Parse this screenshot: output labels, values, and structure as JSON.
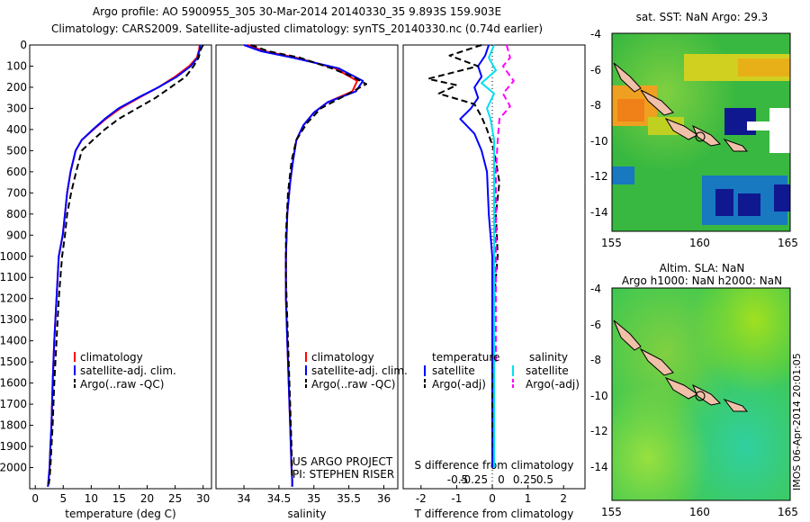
{
  "header": {
    "line1": "Argo profile: AO 5900955_305 30-Mar-2014 20140330_35 9.893S 159.903E",
    "line2": "Climatology: CARS2009. Satellite-adjusted climatology: synTS_20140330.nc (0.74d earlier)"
  },
  "chart_data": [
    {
      "type": "line",
      "panel": "temperature",
      "xlabel": "temperature (deg C)",
      "ylabel": "",
      "xlim": [
        -1,
        31.5
      ],
      "ylim": [
        2100,
        0
      ],
      "xticks": [
        0,
        5,
        10,
        15,
        20,
        25,
        30
      ],
      "yticks": [
        0,
        100,
        200,
        300,
        400,
        500,
        600,
        700,
        800,
        900,
        1000,
        1100,
        1200,
        1300,
        1400,
        1500,
        1600,
        1700,
        1800,
        1900,
        2000
      ],
      "legend": [
        "climatology",
        "satellite-adj. clim.",
        "Argo(..raw -QC)"
      ],
      "series": [
        {
          "name": "climatology",
          "color": "#ff0000",
          "width": 2,
          "dash": "",
          "x": [
            29.4,
            29.3,
            28.9,
            27.5,
            25.0,
            22.0,
            18.5,
            15.2,
            12.6,
            10.4,
            8.3,
            7.2,
            6.3,
            5.7,
            5.3,
            4.9,
            4.2,
            3.8,
            3.4,
            3.1,
            2.9,
            2.7,
            2.55,
            2.4,
            2.3,
            2.25
          ],
          "y": [
            0,
            20,
            60,
            100,
            150,
            200,
            250,
            300,
            350,
            400,
            450,
            500,
            600,
            700,
            800,
            900,
            1000,
            1200,
            1400,
            1600,
            1800,
            1900,
            2000,
            2050,
            2080,
            2090
          ]
        },
        {
          "name": "satellite-adj. clim.",
          "color": "#0000ff",
          "width": 2,
          "dash": "",
          "x": [
            29.5,
            29.4,
            29.0,
            27.8,
            25.3,
            22.0,
            18.3,
            14.9,
            12.4,
            10.3,
            8.3,
            7.2,
            6.3,
            5.7,
            5.3,
            4.9,
            4.2,
            3.8,
            3.4,
            3.1,
            2.9,
            2.7,
            2.55,
            2.4,
            2.3,
            2.25
          ],
          "y": [
            0,
            20,
            60,
            100,
            150,
            200,
            250,
            300,
            350,
            400,
            450,
            500,
            600,
            700,
            800,
            900,
            1000,
            1200,
            1400,
            1600,
            1800,
            1900,
            2000,
            2050,
            2080,
            2090
          ]
        },
        {
          "name": "Argo(..raw -QC)",
          "color": "#000000",
          "width": 2,
          "dash": "7,4",
          "x": [
            30.0,
            29.6,
            29.2,
            28.3,
            26.9,
            24.2,
            21.5,
            18.2,
            14.9,
            12.4,
            10.3,
            8.3,
            7.3,
            6.4,
            5.7,
            5.3,
            4.8,
            4.2,
            3.8,
            3.4,
            3.1,
            2.9,
            2.7,
            2.55,
            2.4
          ],
          "y": [
            0,
            20,
            60,
            100,
            150,
            200,
            250,
            300,
            350,
            400,
            450,
            500,
            600,
            700,
            800,
            900,
            1000,
            1200,
            1400,
            1600,
            1800,
            1900,
            2000,
            2050,
            2080
          ]
        }
      ]
    },
    {
      "type": "line",
      "panel": "salinity",
      "xlabel": "salinity",
      "ylabel": "",
      "xlim": [
        33.6,
        36.2
      ],
      "ylim": [
        2100,
        0
      ],
      "xticks": [
        34,
        34.5,
        35,
        35.5,
        36
      ],
      "legend": [
        "climatology",
        "satellite-adj. clim.",
        "Argo(..raw -QC)"
      ],
      "series": [
        {
          "name": "climatology",
          "color": "#ff0000",
          "width": 2,
          "dash": "",
          "x": [
            34.05,
            34.3,
            34.75,
            35.3,
            35.62,
            35.55,
            35.2,
            35.0,
            34.85,
            34.75,
            34.7,
            34.66,
            34.62,
            34.6,
            34.6,
            34.62,
            34.64,
            34.66,
            34.68,
            34.69,
            34.69
          ],
          "y": [
            0,
            30,
            60,
            110,
            170,
            220,
            270,
            320,
            380,
            450,
            550,
            650,
            800,
            1000,
            1200,
            1400,
            1600,
            1800,
            2000,
            2060,
            2090
          ]
        },
        {
          "name": "satellite-adj. clim.",
          "color": "#0000ff",
          "width": 2,
          "dash": "",
          "x": [
            34.0,
            34.25,
            34.7,
            35.35,
            35.7,
            35.6,
            35.2,
            35.0,
            34.85,
            34.75,
            34.7,
            34.66,
            34.62,
            34.6,
            34.6,
            34.62,
            34.64,
            34.66,
            34.68,
            34.69,
            34.69
          ],
          "y": [
            0,
            30,
            60,
            110,
            170,
            220,
            270,
            320,
            380,
            450,
            550,
            650,
            800,
            1000,
            1200,
            1400,
            1600,
            1800,
            2000,
            2060,
            2090
          ]
        },
        {
          "name": "Argo(..raw -QC)",
          "color": "#000000",
          "width": 2,
          "dash": "7,4",
          "x": [
            34.1,
            34.35,
            34.8,
            35.25,
            35.55,
            35.75,
            35.5,
            35.1,
            34.9,
            34.75,
            34.68,
            34.63,
            34.6,
            34.6,
            34.62,
            34.64,
            34.66,
            34.68,
            34.69
          ],
          "y": [
            0,
            30,
            60,
            110,
            150,
            185,
            230,
            300,
            370,
            450,
            550,
            700,
            900,
            1100,
            1300,
            1500,
            1700,
            1900,
            2050
          ]
        }
      ]
    },
    {
      "type": "line",
      "panel": "difference",
      "xlabel": "T difference from climatology",
      "ylabel": "",
      "xlim": [
        -2.5,
        2.6
      ],
      "ylim": [
        2100,
        0
      ],
      "xticks": [
        -2,
        -1,
        0,
        1,
        2
      ],
      "top_label": "S difference from climatology",
      "top_ticks": [
        "-0.5",
        "-0.25",
        "0",
        "0.25",
        "0.5"
      ],
      "legend_titles": [
        "temperature",
        "salinity"
      ],
      "legend": [
        "satellite",
        "Argo(-adj)",
        "satellite",
        "Argo(-adj)"
      ],
      "series": [
        {
          "name": "satellite",
          "color": "#0000ff",
          "width": 2,
          "dash": "",
          "x": [
            -0.1,
            -0.2,
            -0.4,
            -0.3,
            -0.5,
            -0.4,
            -0.6,
            -0.9,
            -0.5,
            -0.3,
            -0.15,
            -0.1,
            0,
            0,
            0,
            0
          ],
          "y": [
            0,
            50,
            100,
            150,
            200,
            250,
            300,
            350,
            420,
            500,
            600,
            800,
            1000,
            1300,
            1700,
            2000
          ]
        },
        {
          "name": "Argo(-adj)",
          "color": "#000000",
          "width": 2,
          "dash": "7,4",
          "x": [
            -0.3,
            -1.2,
            -0.4,
            -1.8,
            -1.0,
            -1.5,
            -0.5,
            -0.3,
            -0.15,
            0.05,
            0.2,
            0.1,
            0.15,
            0.05,
            0.05,
            0,
            0.05
          ],
          "y": [
            0,
            50,
            100,
            160,
            190,
            230,
            280,
            340,
            400,
            500,
            650,
            800,
            1000,
            1200,
            1400,
            1700,
            2000
          ]
        },
        {
          "name": "satellite",
          "color": "#00e0f0",
          "width": 2,
          "dash": "",
          "x": [
            0.05,
            -0.1,
            0.1,
            -0.3,
            0.05,
            -0.15,
            -0.05,
            0.05,
            0.05,
            0.05,
            0.05,
            0.05
          ],
          "y": [
            0,
            60,
            120,
            180,
            230,
            300,
            350,
            450,
            600,
            1000,
            1500,
            2000
          ]
        },
        {
          "name": "Argo(-adj)",
          "color": "#ff00ff",
          "width": 2,
          "dash": "7,4",
          "x": [
            0.4,
            0.5,
            0.3,
            0.6,
            0.3,
            0.5,
            0.2,
            0.15,
            0.1,
            0.1,
            0.1
          ],
          "y": [
            0,
            60,
            100,
            170,
            230,
            290,
            350,
            450,
            600,
            1000,
            1500
          ]
        }
      ]
    }
  ],
  "labels": {
    "project_line1": "US ARGO PROJECT",
    "project_line2": "PI: STEPHEN RISER",
    "imos_stamp": "IMOS 06-Apr-2014 20:01:05"
  },
  "maps": {
    "sst": {
      "title": "sat. SST: NaN Argo: 29.3",
      "xticks": [
        "155",
        "160",
        "165"
      ],
      "yticks": [
        "-4",
        "-6",
        "-8",
        "-10",
        "-12",
        "-14"
      ]
    },
    "sla": {
      "title1": "Altim. SLA: NaN",
      "title2": "Argo h1000: NaN h2000: NaN",
      "xticks": [
        "155",
        "160",
        "165"
      ],
      "yticks": [
        "-4",
        "-6",
        "-8",
        "-10",
        "-12",
        "-14"
      ]
    }
  }
}
